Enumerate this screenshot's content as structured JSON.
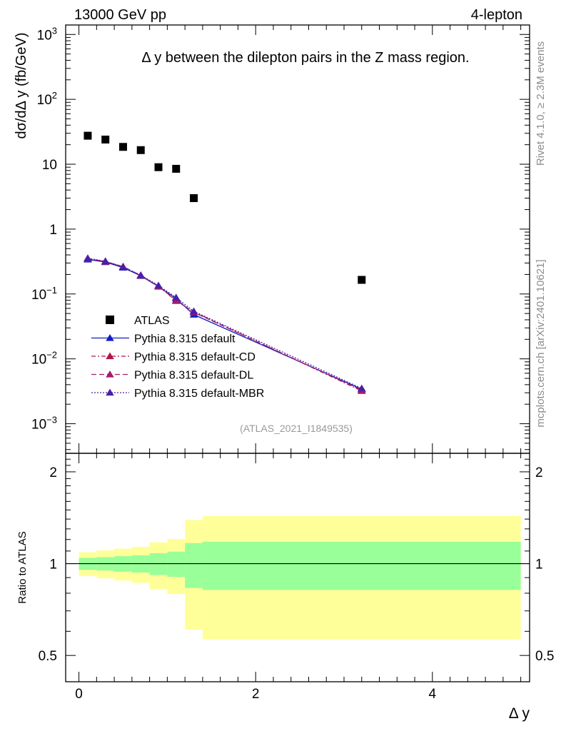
{
  "chart_data": [
    {
      "type": "scatter",
      "panel": "main",
      "title": "Δ y between the dilepton pairs in the Z mass region.",
      "top_left_label": "13000 GeV pp",
      "top_right_label": "4-lepton",
      "ylabel": "dσ/dΔ y (fb/GeV)",
      "yscale": "log",
      "ylim": [
        0.00035,
        1400
      ],
      "xlim": [
        -0.15,
        5.1
      ],
      "y_ticks": [
        {
          "value": 0.001,
          "base": "10",
          "exp": "−3"
        },
        {
          "value": 0.01,
          "base": "10",
          "exp": "−2"
        },
        {
          "value": 0.1,
          "base": "10",
          "exp": "−1"
        },
        {
          "value": 1,
          "base": "1",
          "exp": ""
        },
        {
          "value": 10,
          "base": "10",
          "exp": ""
        },
        {
          "value": 100,
          "base": "10",
          "exp": "2"
        },
        {
          "value": 1000,
          "base": "10",
          "exp": "3"
        }
      ],
      "series": [
        {
          "name": "ATLAS",
          "marker": "square",
          "color": "#000000",
          "x": [
            0.1,
            0.3,
            0.5,
            0.7,
            0.9,
            1.1,
            1.3,
            3.2
          ],
          "y": [
            27.5,
            24.0,
            18.5,
            16.5,
            9.0,
            8.5,
            3.0,
            0.165
          ]
        },
        {
          "name": "Pythia 8.315 default",
          "marker": "triangle",
          "color": "#0f1fc4",
          "dash": "",
          "x": [
            0.1,
            0.3,
            0.5,
            0.7,
            0.9,
            1.1,
            1.3,
            3.2
          ],
          "y": [
            0.34,
            0.31,
            0.255,
            0.19,
            0.13,
            0.085,
            0.048,
            0.0034
          ]
        },
        {
          "name": "Pythia 8.315 default-CD",
          "marker": "triangle",
          "color": "#b0154a",
          "dash": "6,3,2,3",
          "x": [
            0.1,
            0.3,
            0.5,
            0.7,
            0.9,
            1.1,
            1.3,
            3.2
          ],
          "y": [
            0.35,
            0.315,
            0.265,
            0.192,
            0.132,
            0.078,
            0.053,
            0.0032
          ]
        },
        {
          "name": "Pythia 8.315 default-DL",
          "marker": "triangle",
          "color": "#a51b6e",
          "dash": "7,4",
          "x": [
            0.1,
            0.3,
            0.5,
            0.7,
            0.9,
            1.1,
            1.3,
            3.2
          ],
          "y": [
            0.35,
            0.318,
            0.262,
            0.193,
            0.131,
            0.08,
            0.052,
            0.0033
          ]
        },
        {
          "name": "Pythia 8.315 default-MBR",
          "marker": "triangle",
          "color": "#4a1fa8",
          "dash": "2,2",
          "x": [
            0.1,
            0.3,
            0.5,
            0.7,
            0.9,
            1.1,
            1.3,
            3.2
          ],
          "y": [
            0.355,
            0.32,
            0.26,
            0.195,
            0.135,
            0.088,
            0.054,
            0.0035
          ]
        }
      ],
      "legend_position": "lower-left",
      "watermark": "(ATLAS_2021_I1849535)"
    },
    {
      "type": "area",
      "panel": "ratio",
      "ylabel": "Ratio to ATLAS",
      "xlabel": "Δ y",
      "ylim": [
        0.41,
        2.3
      ],
      "xlim": [
        -0.15,
        5.1
      ],
      "x_ticks": [
        0,
        2,
        4
      ],
      "x_tick_labels": [
        "0",
        "2",
        "4"
      ],
      "y_ticks": [
        0.5,
        1,
        2
      ],
      "y_tick_labels": [
        "0.5",
        "1",
        "2"
      ],
      "bins": [
        {
          "lo": 0.0,
          "hi": 0.2,
          "green": [
            0.954,
            1.045
          ],
          "yellow": [
            0.91,
            1.09
          ]
        },
        {
          "lo": 0.2,
          "hi": 0.4,
          "green": [
            0.95,
            1.05
          ],
          "yellow": [
            0.895,
            1.105
          ]
        },
        {
          "lo": 0.4,
          "hi": 0.6,
          "green": [
            0.942,
            1.058
          ],
          "yellow": [
            0.88,
            1.12
          ]
        },
        {
          "lo": 0.6,
          "hi": 0.8,
          "green": [
            0.935,
            1.065
          ],
          "yellow": [
            0.865,
            1.135
          ]
        },
        {
          "lo": 0.8,
          "hi": 1.0,
          "green": [
            0.918,
            1.082
          ],
          "yellow": [
            0.825,
            1.175
          ]
        },
        {
          "lo": 1.0,
          "hi": 1.2,
          "green": [
            0.905,
            1.095
          ],
          "yellow": [
            0.795,
            1.205
          ]
        },
        {
          "lo": 1.2,
          "hi": 1.4,
          "green": [
            0.832,
            1.168
          ],
          "yellow": [
            0.608,
            1.39
          ]
        },
        {
          "lo": 1.4,
          "hi": 5.0,
          "green": [
            0.82,
            1.18
          ],
          "yellow": [
            0.565,
            1.435
          ]
        }
      ],
      "reference_line": 1.0,
      "colors": {
        "green": "#99ff99",
        "yellow": "#ffff99"
      }
    }
  ],
  "side_labels": {
    "rivet": "Rivet 4.1.0, ≥ 2.3M events",
    "mcplots": "mcplots.cern.ch [arXiv:2401.10621]"
  }
}
